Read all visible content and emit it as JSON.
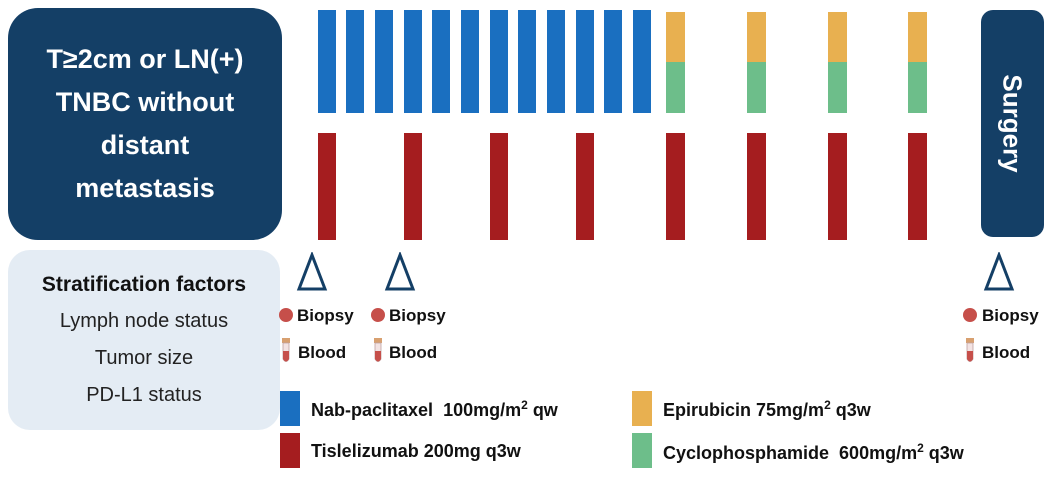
{
  "inclusion_box": {
    "lines": [
      "T≥2cm or LN(+)",
      "TNBC without",
      "distant",
      "metastasis"
    ]
  },
  "stratification": {
    "title": "Stratification factors",
    "factors": [
      "Lymph node status",
      "Tumor size",
      "PD-L1 status"
    ]
  },
  "surgery_label": "Surgery",
  "samples": {
    "biopsy_label": "Biopsy",
    "blood_label": "Blood"
  },
  "legend": {
    "nab_paclitaxel": {
      "name": "Nab-paclitaxel",
      "dose": "100mg/m",
      "sup": "2",
      "schedule": "qw"
    },
    "tislelizumab": {
      "text": "Tislelizumab 200mg q3w"
    },
    "epirubicin": {
      "name": "Epirubicin",
      "dose": "75mg/m",
      "sup": "2",
      "schedule": "q3w"
    },
    "cyclophosphamide": {
      "name": "Cyclophosphamide",
      "dose": "600mg/m",
      "sup": "2",
      "schedule": "q3w"
    }
  },
  "colors": {
    "nab_paclitaxel": "#1a6fc0",
    "tislelizumab": "#a51d1f",
    "epirubicin": "#e8b050",
    "cyclophosphamide": "#6dbe8a",
    "box": "#143f66",
    "strat_box": "#e4ecf4",
    "biopsy_dot": "#c64f4a"
  }
}
